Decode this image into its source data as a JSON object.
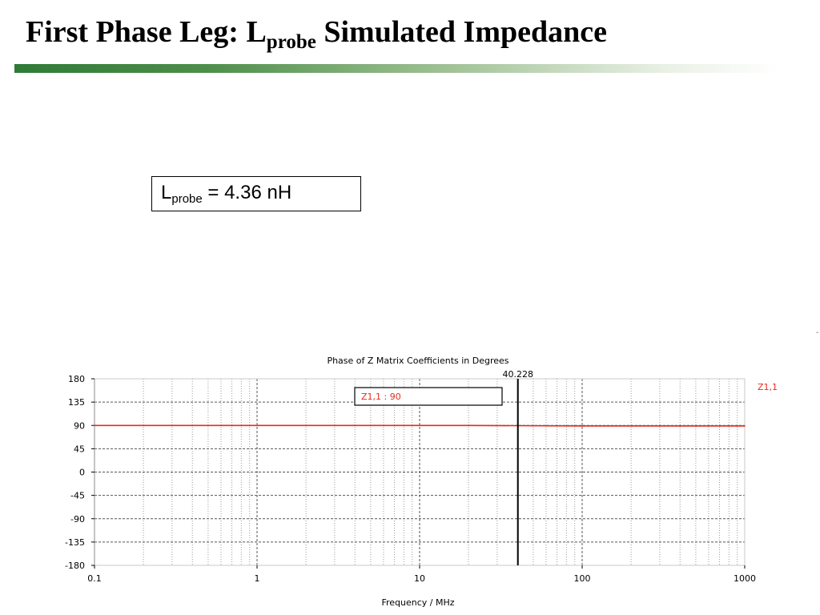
{
  "slide": {
    "title_main": "First Phase Leg: L",
    "title_sub": "probe",
    "title_rest": " Simulated Impedance",
    "stray_mark": "-"
  },
  "annotation": {
    "var_main": "L",
    "var_sub": "probe",
    "value_text": " = 4.36 nH"
  },
  "chart_data": {
    "type": "line",
    "title": "Phase of Z Matrix Coefficients in Degrees",
    "xlabel": "Frequency / MHz",
    "ylabel": "",
    "x_scale": "log",
    "xlim": [
      0.1,
      1000
    ],
    "ylim": [
      -180,
      180
    ],
    "xticks": [
      0.1,
      1,
      10,
      100,
      1000
    ],
    "xtick_labels": [
      "0.1",
      "1",
      "10",
      "100",
      "1000"
    ],
    "yticks": [
      180,
      135,
      90,
      45,
      0,
      -45,
      -90,
      -135,
      -180
    ],
    "ytick_labels": [
      "180",
      "135",
      "90",
      "45",
      "0",
      "-45",
      "-90",
      "-135",
      "-180"
    ],
    "grid": true,
    "series": [
      {
        "name": "Z1,1",
        "color": "#e8291c",
        "x": [
          0.1,
          1,
          10,
          20,
          100,
          1000
        ],
        "y": [
          90,
          90,
          90,
          90,
          89,
          89
        ]
      }
    ],
    "marker": {
      "x": 40.228,
      "label": "40.228",
      "readout": "Z1,1 : 90"
    },
    "legend": [
      "Z1,1"
    ],
    "legend_position": "top-right"
  }
}
